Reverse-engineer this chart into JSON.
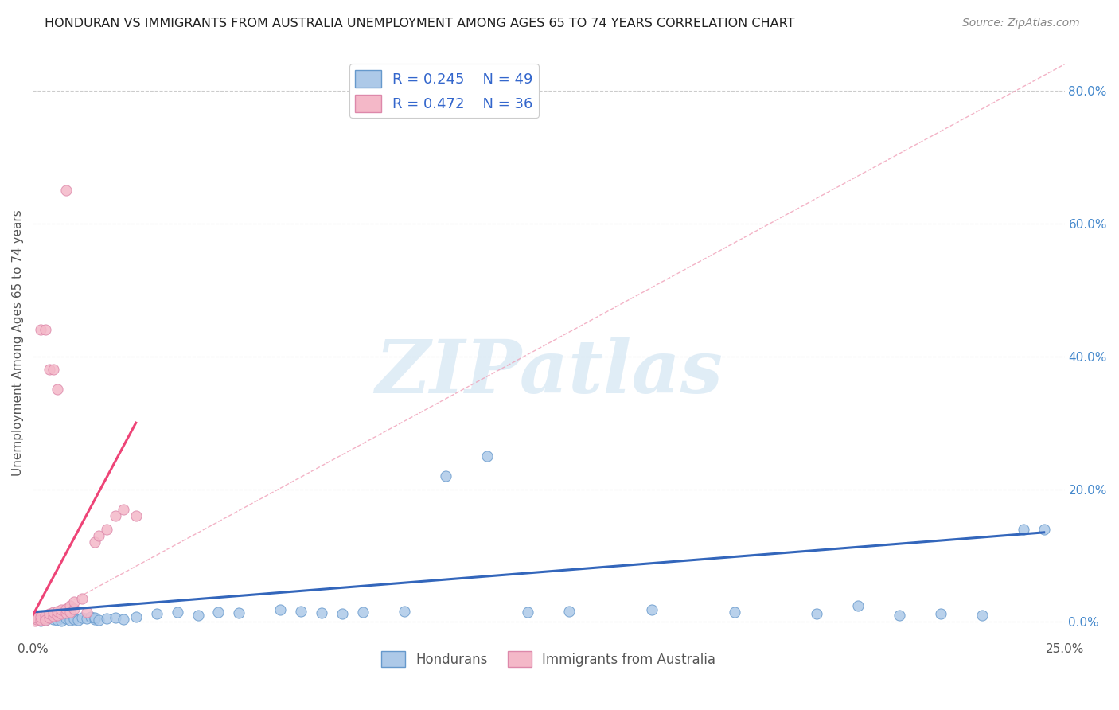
{
  "title": "HONDURAN VS IMMIGRANTS FROM AUSTRALIA UNEMPLOYMENT AMONG AGES 65 TO 74 YEARS CORRELATION CHART",
  "source": "Source: ZipAtlas.com",
  "ylabel": "Unemployment Among Ages 65 to 74 years",
  "x_min": 0.0,
  "x_max": 0.25,
  "y_min": -0.02,
  "y_max": 0.86,
  "y_ticks": [
    0.0,
    0.2,
    0.4,
    0.6,
    0.8
  ],
  "y_tick_labels": [
    "0.0%",
    "20.0%",
    "40.0%",
    "60.0%",
    "80.0%"
  ],
  "blue_color": "#adc9e8",
  "blue_edge": "#6699cc",
  "blue_line": "#3366bb",
  "pink_color": "#f4b8c8",
  "pink_edge": "#dd88aa",
  "pink_line": "#ee4477",
  "diag_color": "#f0a0b8",
  "blue_R": 0.245,
  "blue_N": 49,
  "pink_R": 0.472,
  "pink_N": 36,
  "watermark": "ZIPatlas",
  "watermark_color": "#c8dff0",
  "background_color": "#ffffff",
  "grid_color": "#cccccc",
  "legend_text_color": "#3366cc",
  "blue_scatter_x": [
    0.001,
    0.002,
    0.003,
    0.003,
    0.004,
    0.005,
    0.005,
    0.006,
    0.007,
    0.007,
    0.008,
    0.009,
    0.01,
    0.01,
    0.011,
    0.012,
    0.013,
    0.014,
    0.015,
    0.015,
    0.016,
    0.018,
    0.02,
    0.022,
    0.025,
    0.03,
    0.035,
    0.04,
    0.045,
    0.05,
    0.06,
    0.065,
    0.07,
    0.075,
    0.08,
    0.09,
    0.1,
    0.11,
    0.12,
    0.13,
    0.15,
    0.17,
    0.19,
    0.2,
    0.21,
    0.22,
    0.23,
    0.24,
    0.245
  ],
  "blue_scatter_y": [
    0.005,
    0.002,
    0.008,
    0.003,
    0.006,
    0.004,
    0.009,
    0.003,
    0.007,
    0.002,
    0.005,
    0.003,
    0.006,
    0.004,
    0.003,
    0.007,
    0.005,
    0.008,
    0.004,
    0.006,
    0.003,
    0.005,
    0.007,
    0.004,
    0.008,
    0.012,
    0.015,
    0.01,
    0.015,
    0.014,
    0.018,
    0.016,
    0.014,
    0.012,
    0.015,
    0.016,
    0.22,
    0.25,
    0.015,
    0.016,
    0.018,
    0.015,
    0.012,
    0.025,
    0.01,
    0.012,
    0.01,
    0.14,
    0.14
  ],
  "pink_scatter_x": [
    0.0005,
    0.001,
    0.001,
    0.002,
    0.002,
    0.003,
    0.003,
    0.003,
    0.004,
    0.004,
    0.005,
    0.005,
    0.006,
    0.006,
    0.007,
    0.007,
    0.008,
    0.008,
    0.009,
    0.009,
    0.01,
    0.01,
    0.012,
    0.013,
    0.015,
    0.016,
    0.018,
    0.02,
    0.022,
    0.025,
    0.002,
    0.003,
    0.004,
    0.005,
    0.006,
    0.008
  ],
  "pink_scatter_y": [
    0.002,
    0.004,
    0.006,
    0.003,
    0.008,
    0.005,
    0.01,
    0.003,
    0.007,
    0.012,
    0.009,
    0.015,
    0.01,
    0.016,
    0.012,
    0.018,
    0.014,
    0.02,
    0.015,
    0.025,
    0.02,
    0.03,
    0.035,
    0.015,
    0.12,
    0.13,
    0.14,
    0.16,
    0.17,
    0.16,
    0.44,
    0.44,
    0.38,
    0.38,
    0.35,
    0.65
  ],
  "blue_line_x": [
    0.0,
    0.245
  ],
  "blue_line_y": [
    0.015,
    0.135
  ],
  "pink_line_x": [
    0.0,
    0.025
  ],
  "pink_line_y": [
    0.01,
    0.3
  ]
}
